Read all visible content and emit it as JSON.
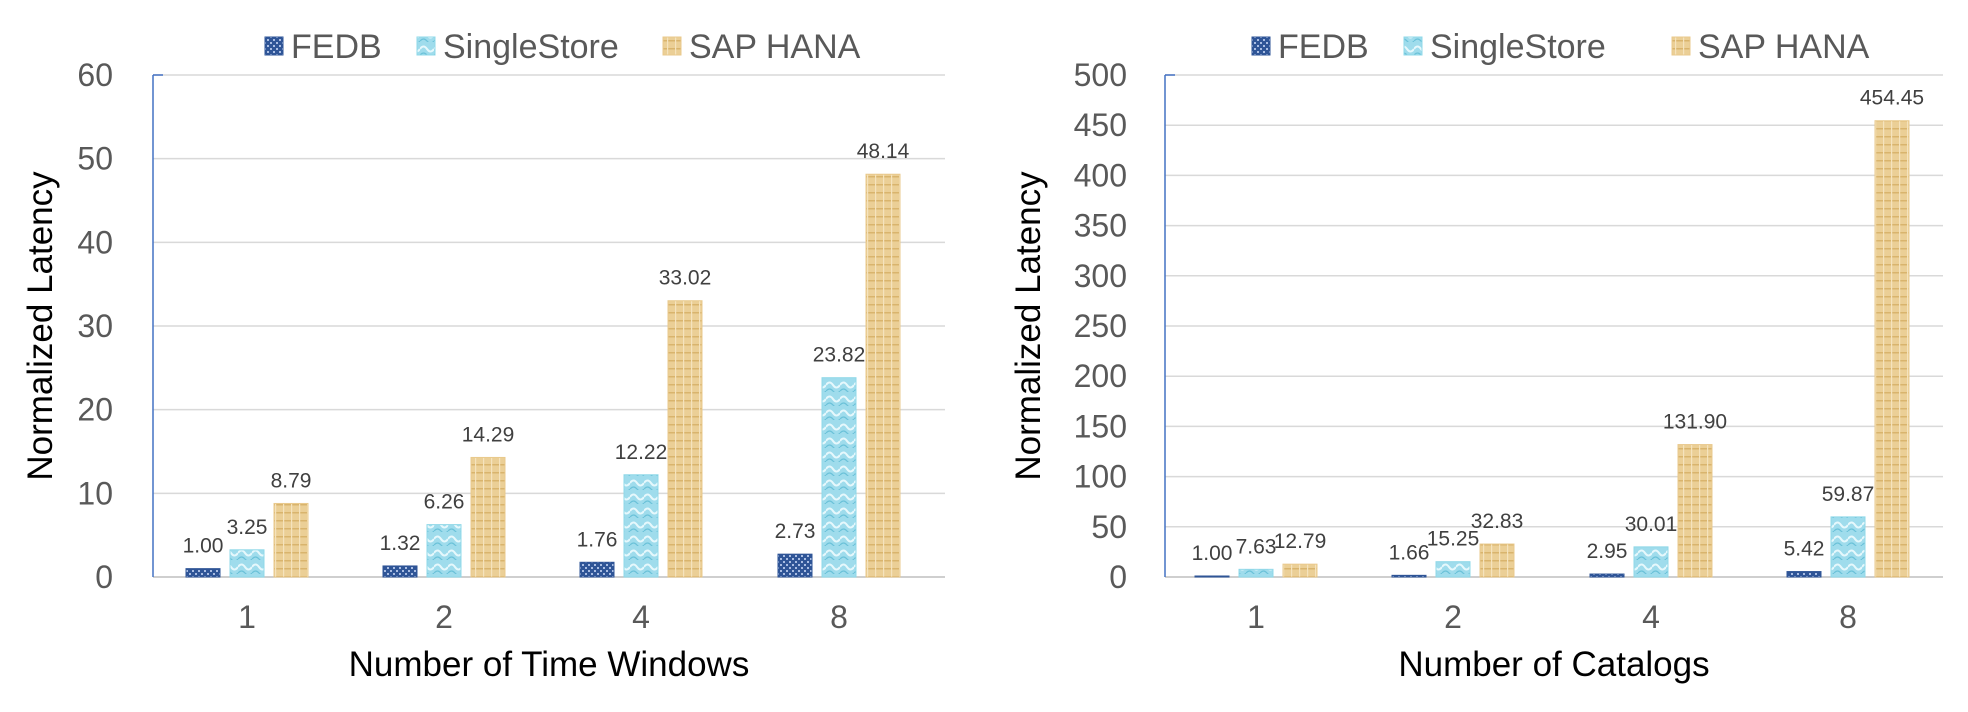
{
  "chart_data": [
    {
      "type": "bar",
      "xlabel": "Number of Time Windows",
      "ylabel": "Normalized Latency",
      "categories": [
        "1",
        "2",
        "4",
        "8"
      ],
      "ylim": [
        0,
        60
      ],
      "yticks": [
        0,
        10,
        20,
        30,
        40,
        50,
        60
      ],
      "grid": true,
      "legend_position": "top",
      "series": [
        {
          "name": "FEDB",
          "values": [
            1.0,
            1.32,
            1.76,
            2.73
          ],
          "labels": [
            "1.00",
            "1.32",
            "1.76",
            "2.73"
          ],
          "color": "#2f5597"
        },
        {
          "name": "SingleStore",
          "values": [
            3.25,
            6.26,
            12.22,
            23.82
          ],
          "labels": [
            "3.25",
            "6.26",
            "12.22",
            "23.82"
          ],
          "color": "#8fd8e8"
        },
        {
          "name": "SAP HANA",
          "values": [
            8.79,
            14.29,
            33.02,
            48.14
          ],
          "labels": [
            "8.79",
            "14.29",
            "33.02",
            "48.14"
          ],
          "color": "#e9c98c"
        }
      ]
    },
    {
      "type": "bar",
      "xlabel": "Number of Catalogs",
      "ylabel": "Normalized Latency",
      "categories": [
        "1",
        "2",
        "4",
        "8"
      ],
      "ylim": [
        0,
        500
      ],
      "yticks": [
        0,
        50,
        100,
        150,
        200,
        250,
        300,
        350,
        400,
        450,
        500
      ],
      "grid": true,
      "legend_position": "top",
      "series": [
        {
          "name": "FEDB",
          "values": [
            1.0,
            1.66,
            2.95,
            5.42
          ],
          "labels": [
            "1.00",
            "1.66",
            "2.95",
            "5.42"
          ],
          "color": "#2f5597"
        },
        {
          "name": "SingleStore",
          "values": [
            7.63,
            15.25,
            30.01,
            59.87
          ],
          "labels": [
            "7.63",
            "15.25",
            "30.01",
            "59.87"
          ],
          "color": "#8fd8e8"
        },
        {
          "name": "SAP HANA",
          "values": [
            12.79,
            32.83,
            131.9,
            454.45
          ],
          "labels": [
            "12.79",
            "32.83",
            "131.90",
            "454.45"
          ],
          "color": "#e9c98c"
        }
      ]
    }
  ]
}
